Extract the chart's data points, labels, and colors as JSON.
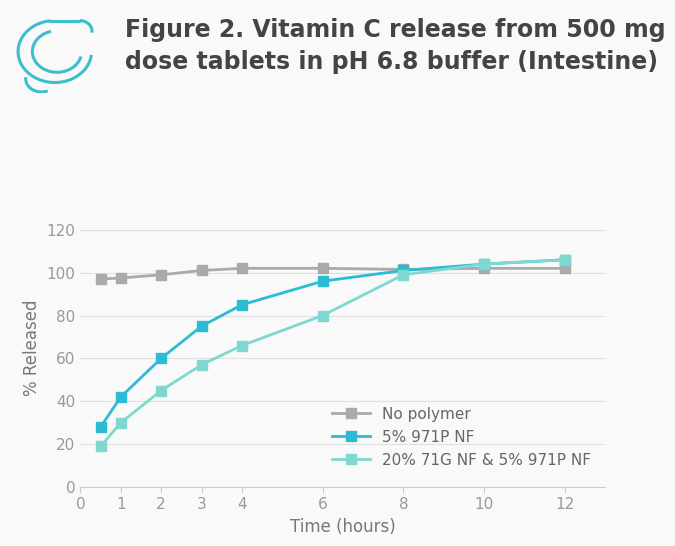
{
  "title_line1": "Figure 2. Vitamin C release from 500 mg",
  "title_line2": "dose tablets in pH 6.8 buffer (Intestine)",
  "xlabel": "Time (hours)",
  "ylabel": "% Released",
  "xlim": [
    0,
    13
  ],
  "ylim": [
    0,
    130
  ],
  "yticks": [
    0,
    20,
    40,
    60,
    80,
    100,
    120
  ],
  "xticks": [
    0,
    1,
    2,
    3,
    4,
    6,
    8,
    10,
    12
  ],
  "background_color": "#f9f9f9",
  "series": [
    {
      "label": "No polymer",
      "color": "#aaaaaa",
      "marker": "s",
      "x": [
        0.5,
        1.0,
        2.0,
        3.0,
        4.0,
        6.0,
        8.0,
        10.0,
        12.0
      ],
      "y": [
        97,
        97.5,
        99,
        101,
        102,
        102,
        101.5,
        102,
        102
      ]
    },
    {
      "label": "5% 971P NF",
      "color": "#2bbcd4",
      "marker": "s",
      "x": [
        0.5,
        1.0,
        2.0,
        3.0,
        4.0,
        6.0,
        8.0,
        10.0,
        12.0
      ],
      "y": [
        28,
        42,
        60,
        75,
        85,
        96,
        101,
        104,
        106
      ]
    },
    {
      "label": "20% 71G NF & 5% 971P NF",
      "color": "#7ed8d0",
      "marker": "s",
      "x": [
        0.5,
        1.0,
        2.0,
        3.0,
        4.0,
        6.0,
        8.0,
        10.0,
        12.0
      ],
      "y": [
        19,
        30,
        45,
        57,
        66,
        80,
        99,
        104,
        106
      ]
    }
  ],
  "title_fontsize": 17,
  "axis_label_fontsize": 12,
  "tick_fontsize": 11,
  "legend_fontsize": 11,
  "line_width": 2.0,
  "marker_size": 7,
  "icon_color": "#3bbfcf"
}
